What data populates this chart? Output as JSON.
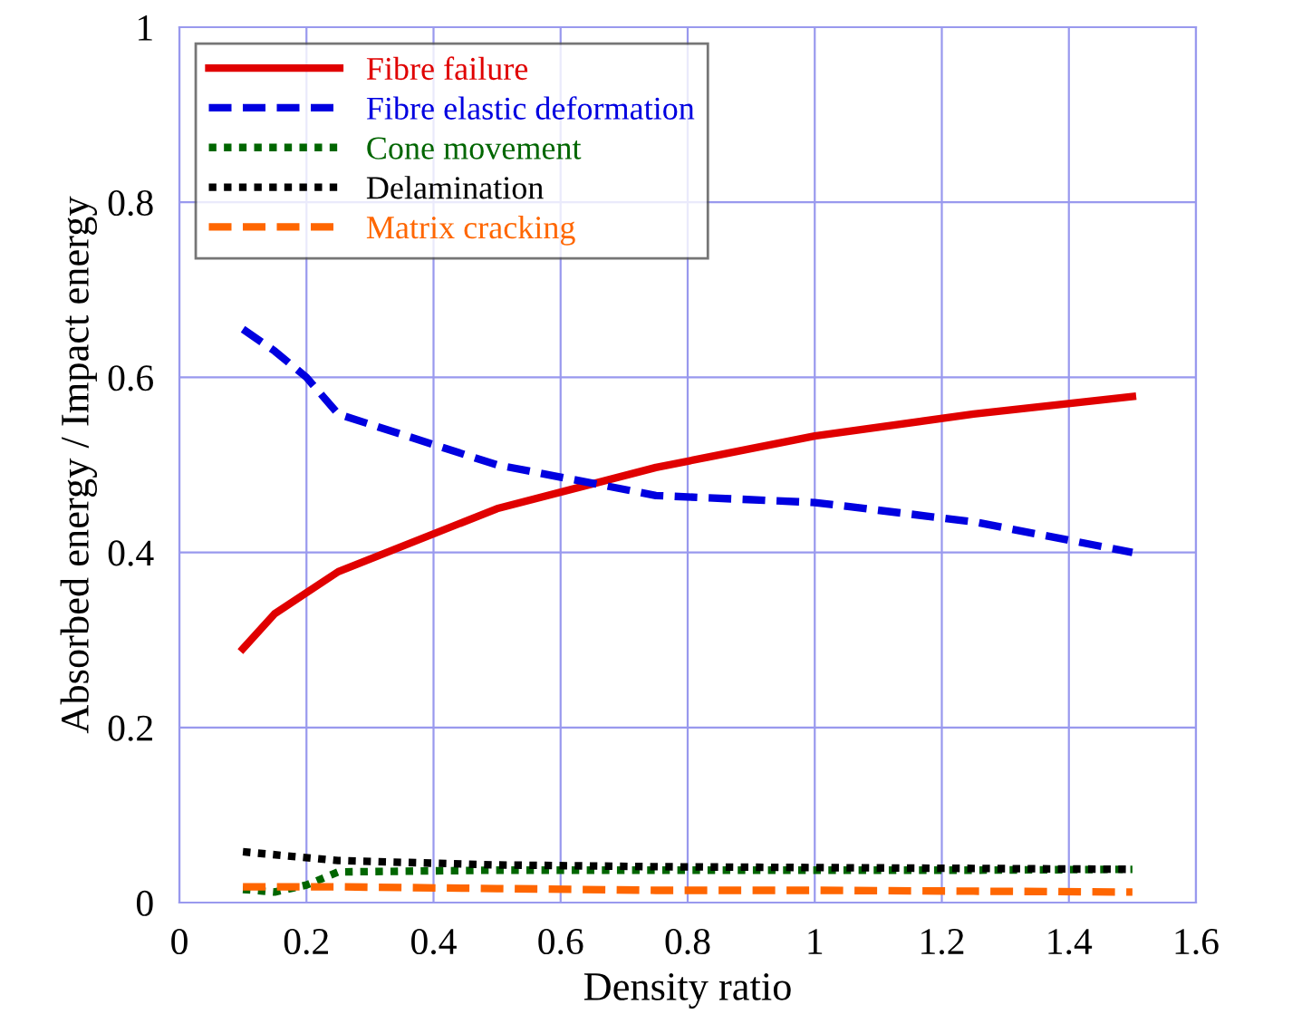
{
  "chart_data": {
    "type": "line",
    "xlabel": "Density ratio",
    "ylabel": "Absorbed energy / Impact energy",
    "xlim": [
      0,
      1.6
    ],
    "xticks": [
      0,
      0.2,
      0.4,
      0.6,
      0.8,
      1,
      1.2,
      1.4,
      1.6
    ],
    "ylim": [
      0,
      1
    ],
    "yticks": [
      0,
      0.2,
      0.4,
      0.6,
      0.8,
      1
    ],
    "grid": true,
    "legend": "top left",
    "series": [
      {
        "name": "Fibre failure",
        "color": "#e00000",
        "line_style": "solid",
        "x": [
          0.1,
          0.15,
          0.25,
          0.5,
          0.75,
          1.0,
          1.25,
          1.5
        ],
        "values": [
          0.29,
          0.33,
          0.378,
          0.45,
          0.497,
          0.533,
          0.558,
          0.578
        ]
      },
      {
        "name": "Fibre elastic deformation",
        "color": "#0000e0",
        "line_style": "dashed",
        "x": [
          0.1,
          0.15,
          0.2,
          0.25,
          0.5,
          0.75,
          1.0,
          1.25,
          1.5
        ],
        "values": [
          0.655,
          0.63,
          0.6,
          0.558,
          0.5,
          0.465,
          0.457,
          0.435,
          0.4
        ]
      },
      {
        "name": "Cone movement",
        "color": "#006600",
        "line_style": "dotted",
        "x": [
          0.1,
          0.15,
          0.2,
          0.25,
          0.5,
          0.75,
          1.0,
          1.25,
          1.5
        ],
        "values": [
          0.015,
          0.012,
          0.02,
          0.035,
          0.037,
          0.037,
          0.037,
          0.037,
          0.038
        ]
      },
      {
        "name": "Delamination",
        "color": "#000000",
        "line_style": "dotted",
        "x": [
          0.1,
          0.25,
          0.5,
          0.75,
          1.0,
          1.25,
          1.5
        ],
        "values": [
          0.058,
          0.048,
          0.043,
          0.041,
          0.04,
          0.039,
          0.038
        ]
      },
      {
        "name": "Matrix cracking",
        "color": "#ff6600",
        "line_style": "dashed",
        "x": [
          0.1,
          0.25,
          0.5,
          0.75,
          1.0,
          1.25,
          1.5
        ],
        "values": [
          0.018,
          0.018,
          0.016,
          0.014,
          0.014,
          0.013,
          0.012
        ]
      }
    ]
  }
}
